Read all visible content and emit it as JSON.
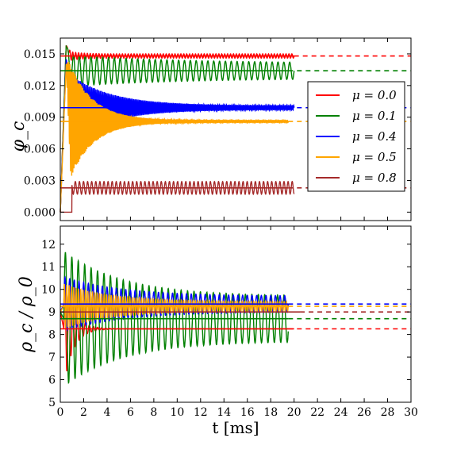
{
  "chart_data": [
    {
      "type": "line",
      "ylabel": "φ_c",
      "ylim": [
        -0.0008,
        0.0165
      ],
      "xlim": [
        0,
        30
      ],
      "yticks": [
        "0.000",
        "0.003",
        "0.006",
        "0.009",
        "0.012",
        "0.015"
      ],
      "legend": {
        "placement": "right"
      },
      "series": [
        {
          "name": "μ = 0.0",
          "color": "#ff0000",
          "final": 0.0148,
          "spike": 0.0158,
          "osc_start": 0.0005,
          "osc_end": 0.0002,
          "decay": 1.0,
          "period": 0.25,
          "end_t": 20.0,
          "onset": 0
        },
        {
          "name": "μ = 0.1",
          "color": "#008000",
          "final": 0.0134,
          "spike": 0.0158,
          "osc_start": 0.0015,
          "osc_end": 0.0007,
          "decay": 10.0,
          "period": 0.5,
          "end_t": 20.0,
          "onset": 0
        },
        {
          "name": "μ = 0.4",
          "color": "#0000ff",
          "final": 0.0099,
          "spike": 0.0145,
          "osc_start": 0.0035,
          "osc_end": 0.0002,
          "decay": 3.5,
          "period": 0.12,
          "end_t": 20.0,
          "onset": 0
        },
        {
          "name": "μ = 0.5",
          "color": "#ffa500",
          "final": 0.0086,
          "spike": 0.014,
          "osc_start": 0.0065,
          "osc_end": 0.0001,
          "decay": 2.0,
          "period": 0.1,
          "end_t": 19.5,
          "onset": 0
        },
        {
          "name": "μ = 0.8",
          "color": "#a52a2a",
          "final": 0.0023,
          "spike": 0.0028,
          "osc_start": 0.0006,
          "osc_end": 0.0006,
          "decay": 50.0,
          "period": 0.35,
          "end_t": 20.0,
          "onset": 1.0
        }
      ],
      "reference_lines": [
        {
          "color": "#ff0000",
          "y": 0.0148,
          "dashed_from": 20.0
        },
        {
          "color": "#008000",
          "y": 0.0134,
          "dashed_from": 19.5
        },
        {
          "color": "#0000ff",
          "y": 0.0099,
          "dashed_from": 19.5
        },
        {
          "color": "#ffa500",
          "y": 0.0086,
          "dashed_from": 19.5
        },
        {
          "color": "#a52a2a",
          "y": 0.0023,
          "dashed_from": 19.5
        }
      ]
    },
    {
      "type": "line",
      "ylabel": "ρ_c / ρ_0",
      "xlabel": "t [ms]",
      "xlim": [
        0,
        30
      ],
      "ylim": [
        5,
        12.8
      ],
      "xticks": [
        "0",
        "2",
        "4",
        "6",
        "8",
        "10",
        "12",
        "14",
        "16",
        "18",
        "20",
        "22",
        "24",
        "26",
        "28",
        "30"
      ],
      "yticks": [
        "5",
        "6",
        "7",
        "8",
        "9",
        "10",
        "11",
        "12"
      ],
      "series": [
        {
          "name": "μ = 0.0",
          "color": "#ff0000",
          "final": 8.25,
          "amp_start": 2.6,
          "amp_end": 0.0,
          "decay": 0.8,
          "period": 0.35,
          "end_t": 20.0
        },
        {
          "name": "μ = 0.1",
          "color": "#008000",
          "final": 8.7,
          "amp_start": 3.0,
          "amp_end": 1.0,
          "decay": 5.0,
          "period": 0.55,
          "end_t": 19.5
        },
        {
          "name": "μ = 0.4",
          "color": "#0000ff",
          "final": 9.35,
          "amp_start": 1.2,
          "amp_end": 0.35,
          "decay": 5.0,
          "period": 0.4,
          "end_t": 19.5
        },
        {
          "name": "μ = 0.5",
          "color": "#ffa500",
          "final": 9.25,
          "amp_start": 1.0,
          "amp_end": 0.2,
          "decay": 4.0,
          "period": 0.2,
          "end_t": 19.5
        },
        {
          "name": "μ = 0.8",
          "color": "#a52a2a",
          "final": 9.0,
          "amp_start": 0.0,
          "amp_end": 0.0,
          "decay": 1.0,
          "period": 1.0,
          "end_t": 20.5
        }
      ],
      "reference_lines": [
        {
          "color": "#ff0000",
          "y": 8.25,
          "dashed_from": 19.5
        },
        {
          "color": "#008000",
          "y": 8.7,
          "dashed_from": 19.5
        },
        {
          "color": "#0000ff",
          "y": 9.35,
          "dashed_from": 19.5
        },
        {
          "color": "#ffa500",
          "y": 9.25,
          "dashed_from": 19.5
        },
        {
          "color": "#a52a2a",
          "y": 9.0,
          "dashed_from": 20.5
        }
      ]
    }
  ]
}
